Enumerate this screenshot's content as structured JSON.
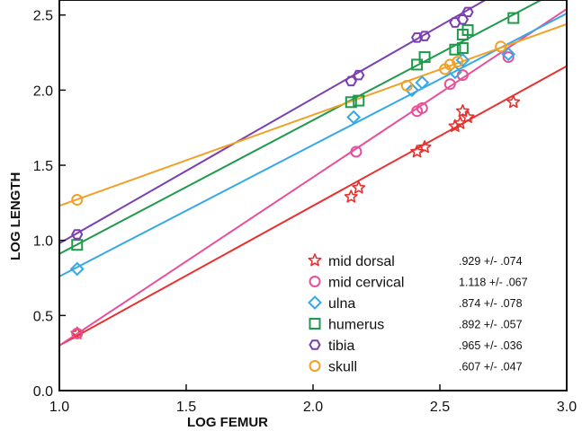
{
  "chart_data": {
    "type": "scatter",
    "title": "",
    "xlabel": "LOG FEMUR",
    "ylabel": "LOG LENGTH",
    "xlim": [
      1.0,
      3.0
    ],
    "ylim": [
      0.0,
      2.6
    ],
    "xticks": [
      "1.0",
      "1.5",
      "2.0",
      "2.5",
      "3.0"
    ],
    "yticks": [
      "0.0",
      "0.5",
      "1.0",
      "1.5",
      "2.0",
      "2.5"
    ],
    "legend_position": "bottom-right",
    "series": [
      {
        "name": "mid dorsal",
        "slope_label": ".929 +/- .074",
        "color": "#e8312f",
        "marker": "star",
        "points": [
          [
            1.07,
            0.38
          ],
          [
            2.15,
            1.29
          ],
          [
            2.18,
            1.35
          ],
          [
            2.41,
            1.59
          ],
          [
            2.44,
            1.62
          ],
          [
            2.56,
            1.76
          ],
          [
            2.58,
            1.78
          ],
          [
            2.59,
            1.86
          ],
          [
            2.61,
            1.82
          ],
          [
            2.79,
            1.92
          ]
        ],
        "line": [
          [
            1.0,
            0.3
          ],
          [
            3.0,
            2.16
          ]
        ]
      },
      {
        "name": "mid cervical",
        "slope_label": "1.118 +/- .067",
        "color": "#e84f9a",
        "marker": "circle",
        "points": [
          [
            1.07,
            0.38
          ],
          [
            2.17,
            1.59
          ],
          [
            2.41,
            1.86
          ],
          [
            2.43,
            1.88
          ],
          [
            2.54,
            2.04
          ],
          [
            2.59,
            2.1
          ],
          [
            2.77,
            2.22
          ]
        ],
        "line": [
          [
            1.0,
            0.3
          ],
          [
            3.0,
            2.54
          ]
        ]
      },
      {
        "name": "ulna",
        "slope_label": ".874 +/- .078",
        "color": "#35a9e6",
        "marker": "diamond",
        "points": [
          [
            1.07,
            0.81
          ],
          [
            2.16,
            1.82
          ],
          [
            2.39,
            2.0
          ],
          [
            2.43,
            2.05
          ],
          [
            2.56,
            2.12
          ],
          [
            2.59,
            2.2
          ],
          [
            2.77,
            2.24
          ]
        ],
        "line": [
          [
            1.0,
            0.76
          ],
          [
            3.0,
            2.51
          ]
        ]
      },
      {
        "name": "humerus",
        "slope_label": ".892 +/- .057",
        "color": "#1e9a4b",
        "marker": "square",
        "points": [
          [
            1.07,
            0.97
          ],
          [
            2.15,
            1.92
          ],
          [
            2.18,
            1.93
          ],
          [
            2.41,
            2.17
          ],
          [
            2.44,
            2.22
          ],
          [
            2.56,
            2.27
          ],
          [
            2.59,
            2.28
          ],
          [
            2.59,
            2.37
          ],
          [
            2.61,
            2.4
          ],
          [
            2.79,
            2.48
          ]
        ],
        "line": [
          [
            1.0,
            0.91
          ],
          [
            3.0,
            2.69
          ]
        ]
      },
      {
        "name": "tibia",
        "slope_label": ".965 +/- .036",
        "color": "#7b3fb0",
        "marker": "hexagon",
        "points": [
          [
            1.07,
            1.04
          ],
          [
            2.15,
            2.06
          ],
          [
            2.18,
            2.1
          ],
          [
            2.41,
            2.35
          ],
          [
            2.44,
            2.36
          ],
          [
            2.56,
            2.45
          ],
          [
            2.59,
            2.47
          ],
          [
            2.61,
            2.52
          ]
        ],
        "line": [
          [
            1.0,
            0.98
          ],
          [
            3.0,
            2.91
          ]
        ]
      },
      {
        "name": "skull",
        "slope_label": ".607 +/- .047",
        "color": "#f0a128",
        "marker": "circle",
        "points": [
          [
            1.07,
            1.27
          ],
          [
            2.37,
            2.03
          ],
          [
            2.52,
            2.14
          ],
          [
            2.54,
            2.17
          ],
          [
            2.57,
            2.19
          ],
          [
            2.74,
            2.29
          ]
        ],
        "line": [
          [
            1.0,
            1.23
          ],
          [
            3.0,
            2.44
          ]
        ]
      }
    ]
  }
}
